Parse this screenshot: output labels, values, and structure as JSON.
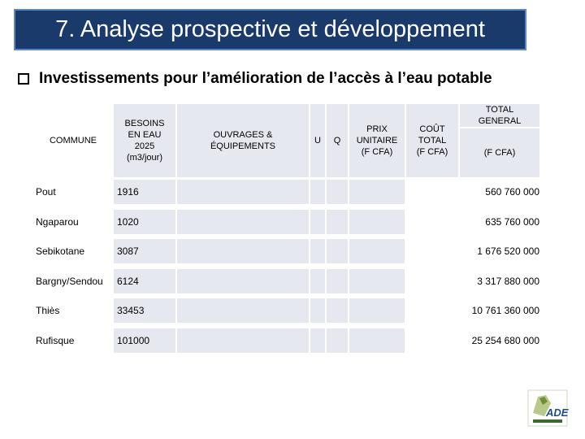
{
  "title": "7. Analyse prospective et développement",
  "subtitle": "Investissements pour l’amélioration de l’accès à l’eau potable",
  "columns": {
    "commune": "COMMUNE",
    "besoins": [
      "BESOINS",
      "EN EAU",
      "2025",
      "(m3/jour)"
    ],
    "ouvrages": [
      "OUVRAGES &",
      "ÉQUIPEMENTS"
    ],
    "u": "U",
    "q": "Q",
    "prix": [
      "PRIX",
      "UNITAIRE",
      "(F CFA)"
    ],
    "cout": [
      "COÛT",
      "TOTAL",
      "(F CFA)"
    ],
    "total_general": [
      "TOTAL",
      "GENERAL"
    ],
    "total_unit": "(F CFA)"
  },
  "rows": [
    {
      "commune": "Pout",
      "besoins": "1916",
      "total": "560 760 000"
    },
    {
      "commune": "Ngaparou",
      "besoins": "1020",
      "total": "635 760 000"
    },
    {
      "commune": "Sebikotane",
      "besoins": "3087",
      "total": "1 676 520 000"
    },
    {
      "commune": "Bargny/Sendou",
      "besoins": "6124",
      "total": "3 317 880 000"
    },
    {
      "commune": "Thiès",
      "besoins": "33453",
      "total": "10 761 360 000"
    },
    {
      "commune": "Rufisque",
      "besoins": "101000",
      "total": "25 254 680 000"
    }
  ],
  "logo_text": "ADEV"
}
